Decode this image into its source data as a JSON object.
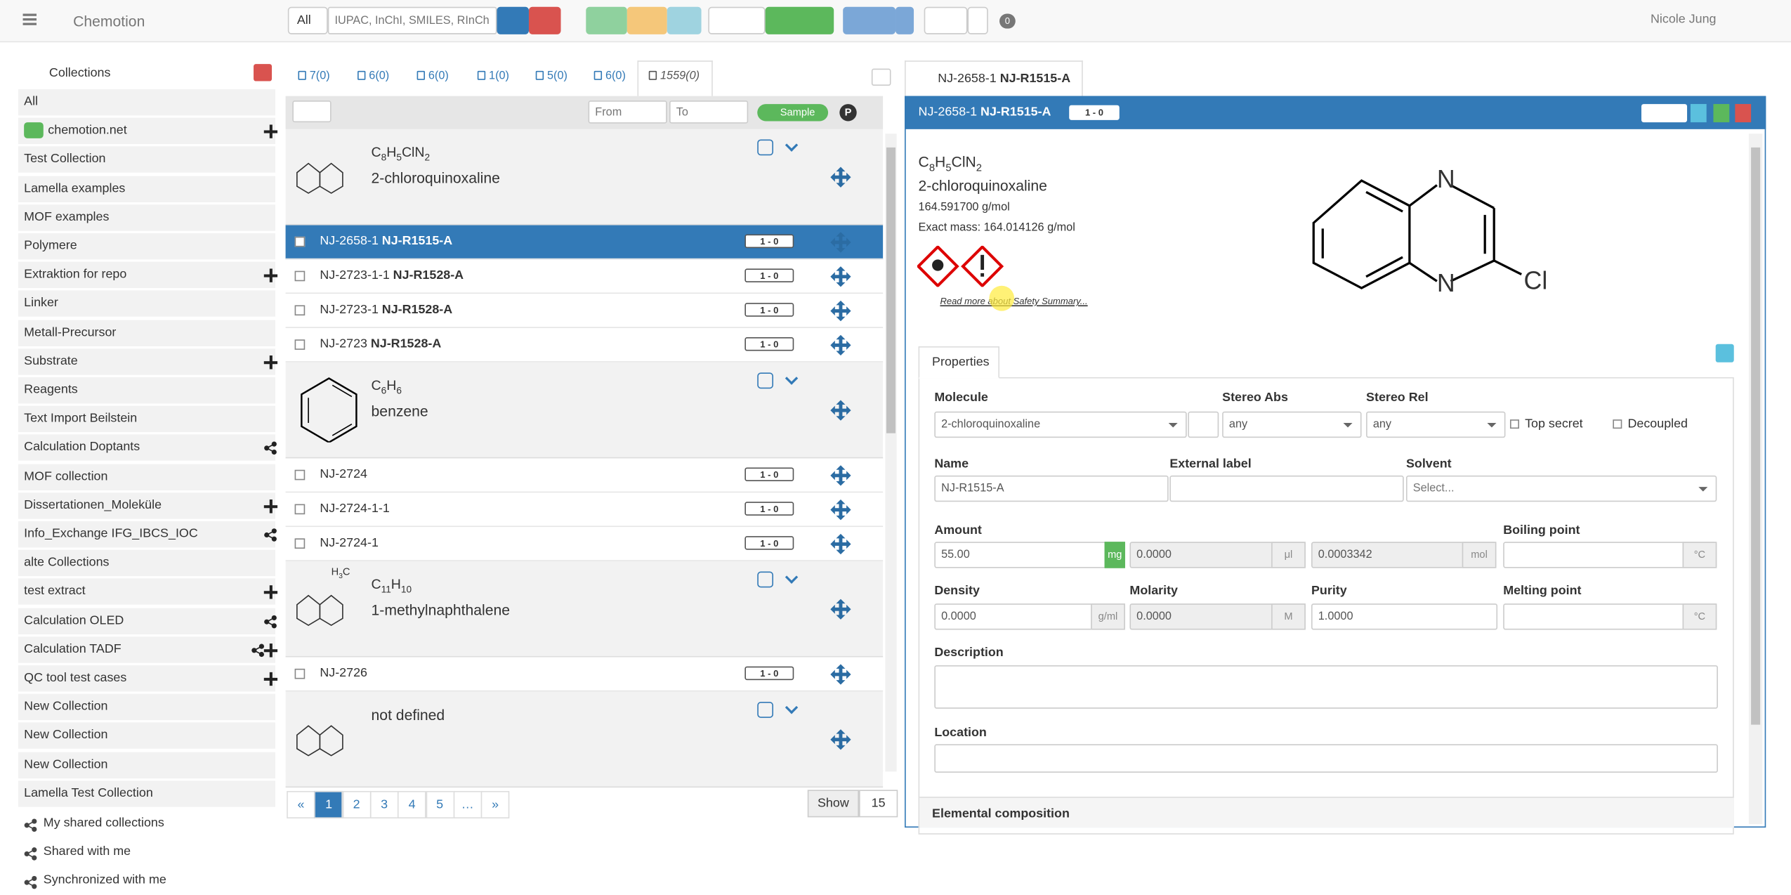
{
  "navbar": {
    "brand": "Chemotion",
    "search_scope": "All",
    "search_placeholder": "IUPAC, InChI, SMILES, RInChI",
    "badge": "0",
    "user": "Nicole Jung"
  },
  "sidebar": {
    "title": "Collections",
    "items": [
      "All",
      "chemotion.net",
      "Test Collection",
      "Lamella examples",
      "MOF examples",
      "Polymere",
      "Extraktion for repo",
      "Linker",
      "Metall-Precursor",
      "Substrate",
      "Reagents",
      "Text Import Beilstein",
      "Calculation Doptants",
      "MOF collection",
      "Dissertationen_Moleküle",
      "Info_Exchange IFG_IBCS_IOC",
      "alte Collections",
      "test extract",
      "Calculation OLED",
      "Calculation TADF",
      "QC tool test cases",
      "New Collection",
      "New Collection",
      "New Collection",
      "Lamella Test Collection"
    ],
    "shared": [
      "My shared collections",
      "Shared with me",
      "Synchronized with me"
    ]
  },
  "element_tabs": [
    "7(0)",
    "6(0)",
    "6(0)",
    "1(0)",
    "5(0)",
    "6(0)",
    "1559(0)"
  ],
  "filter": {
    "from": "From",
    "to": "To",
    "toggle": "Sample",
    "p": "P"
  },
  "list": {
    "groups": [
      {
        "formula": "C8H5ClN2",
        "name": "2-chloroquinoxaline",
        "samples": [
          {
            "id": "NJ-2658-1",
            "short": "NJ-R1515-A",
            "badge": "1 - 0"
          },
          {
            "id": "NJ-2723-1-1",
            "short": "NJ-R1528-A",
            "badge": "1 - 0"
          },
          {
            "id": "NJ-2723-1",
            "short": "NJ-R1528-A",
            "badge": "1 - 0"
          },
          {
            "id": "NJ-2723",
            "short": "NJ-R1528-A",
            "badge": "1 - 0"
          }
        ]
      },
      {
        "formula": "C6H6",
        "name": "benzene",
        "samples": [
          {
            "id": "NJ-2724",
            "badge": "1 - 0"
          },
          {
            "id": "NJ-2724-1-1",
            "badge": "1 - 0"
          },
          {
            "id": "NJ-2724-1",
            "badge": "1 - 0"
          }
        ]
      },
      {
        "formula": "C11H10",
        "name": "1-methylnaphthalene",
        "structure_label": "H3C",
        "samples": [
          {
            "id": "NJ-2726",
            "badge": "1 - 0"
          }
        ]
      },
      {
        "name": "not defined",
        "samples": []
      }
    ]
  },
  "pagination": {
    "pages": [
      "«",
      "1",
      "2",
      "3",
      "4",
      "5",
      "…",
      "»"
    ],
    "show": "Show",
    "per_page": "15"
  },
  "detail": {
    "tab_id": "NJ-2658-1",
    "tab_short": "NJ-R1515-A",
    "header_id": "NJ-2658-1",
    "header_short": "NJ-R1515-A",
    "header_badge": "1 - 0",
    "formula": "C8H5ClN2",
    "name": "2-chloroquinoxaline",
    "molar_mass": "164.591700 g/mol",
    "exact_mass": "Exact mass: 164.014126 g/mol",
    "atoms": [
      "N",
      "N",
      "Cl"
    ],
    "safety_link": "Read more about Safety Summary...",
    "properties_tab": "Properties",
    "fields": [
      {
        "label": "Molecule",
        "value": "2-chloroquinoxaline"
      },
      {
        "label": "Stereo Abs",
        "value": "any"
      },
      {
        "label": "Stereo Rel",
        "value": "any"
      },
      {
        "label": "Name",
        "value": "NJ-R1515-A"
      },
      {
        "label": "External label"
      },
      {
        "label": "Solvent",
        "placeholder": "Select..."
      },
      {
        "label": "Amount",
        "value": "55.00",
        "unit": "mg"
      },
      {
        "value": "0.0000",
        "unit": "μl"
      },
      {
        "value": "0.0003342",
        "unit": "mol"
      },
      {
        "label": "Boiling point",
        "unit": "°C"
      },
      {
        "label": "Density",
        "value": "0.0000",
        "unit": "g/ml"
      },
      {
        "label": "Molarity",
        "value": "0.0000",
        "unit": "M"
      },
      {
        "label": "Purity",
        "value": "1.0000"
      },
      {
        "label": "Melting point",
        "unit": "°C"
      }
    ],
    "checkboxes": [
      "Top secret",
      "Decoupled"
    ],
    "description": "Description",
    "location": "Location",
    "elemental": "Elemental composition"
  }
}
